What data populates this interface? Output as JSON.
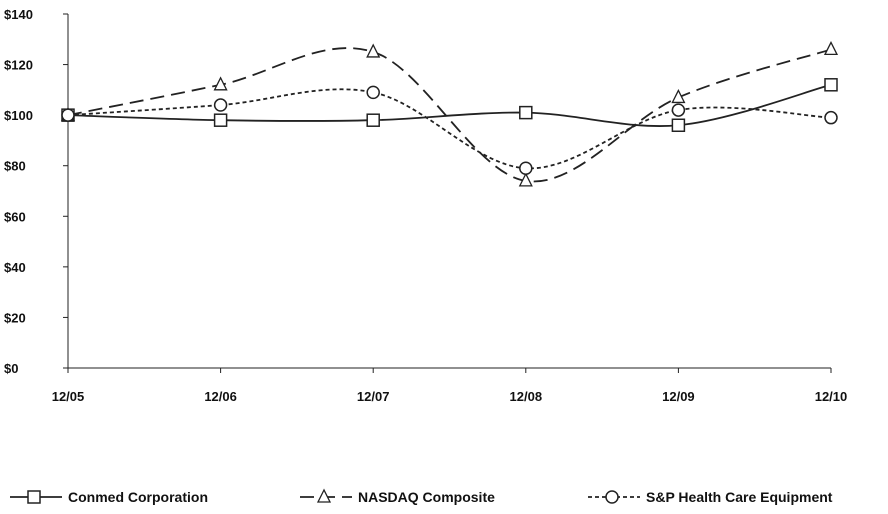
{
  "chart_data": {
    "type": "line",
    "title": "",
    "xlabel": "",
    "ylabel": "",
    "categories": [
      "12/05",
      "12/06",
      "12/07",
      "12/08",
      "12/09",
      "12/10"
    ],
    "y_ticks": [
      "$0",
      "$20",
      "$40",
      "$60",
      "$80",
      "$100",
      "$120",
      "$140"
    ],
    "ylim": [
      0,
      140
    ],
    "grid": false,
    "legend_position": "bottom",
    "series": [
      {
        "name": "Conmed Corporation",
        "values": [
          100,
          98,
          98,
          101,
          96,
          112
        ],
        "marker": "square",
        "dash": "solid",
        "color": "#222222"
      },
      {
        "name": "NASDAQ Composite",
        "values": [
          100,
          112,
          125,
          74,
          107,
          126
        ],
        "marker": "triangle",
        "dash": "long-dash",
        "color": "#222222"
      },
      {
        "name": "S&P Health Care Equipment",
        "values": [
          100,
          104,
          109,
          79,
          102,
          99
        ],
        "marker": "circle",
        "dash": "short-dash",
        "color": "#222222"
      }
    ]
  }
}
